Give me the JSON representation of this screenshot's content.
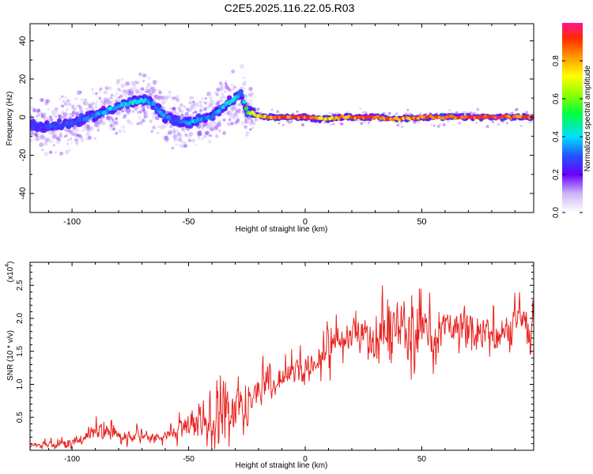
{
  "title": "C2E5.2025.116.22.05.R03",
  "chart_data": [
    {
      "type": "heatmap",
      "xlabel": "Height of straight line (km)",
      "ylabel": "Frequency (Hz)",
      "xlim": [
        -118,
        98
      ],
      "ylim": [
        -50,
        49
      ],
      "x_ticks": [
        -100,
        -50,
        0,
        50
      ],
      "x_tick_labels": [
        "-100",
        "-50",
        "0",
        "50"
      ],
      "y_ticks": [
        -40,
        -20,
        0,
        20,
        40
      ],
      "y_tick_labels": [
        "-40",
        "-20",
        "0",
        "20",
        "40"
      ],
      "grid": false,
      "colorbar": {
        "label": "Normalized spectral amplitude",
        "range": [
          0,
          1
        ],
        "ticks": [
          0.0,
          0.2,
          0.4,
          0.6,
          0.8
        ],
        "tick_labels": [
          "0.0",
          "0.2",
          "0.4",
          "0.6",
          "0.8"
        ]
      },
      "ridge": {
        "x": [
          -118,
          -110,
          -100,
          -90,
          -80,
          -70,
          -65,
          -60,
          -55,
          -50,
          -45,
          -40,
          -35,
          -30,
          -27,
          -25,
          -23,
          -20,
          -15,
          -10,
          -5,
          0,
          5,
          10,
          15,
          20,
          30,
          40,
          50,
          60,
          70,
          80,
          90,
          98
        ],
        "frequency": [
          -4,
          -5,
          -3,
          1,
          6,
          9,
          7,
          0,
          -2,
          -3,
          -1,
          0,
          6,
          10,
          12,
          3,
          2,
          1,
          0,
          0,
          0,
          0,
          -1,
          -1,
          0,
          0,
          0,
          -1,
          0,
          0,
          0,
          0,
          0,
          0
        ],
        "amplitude": [
          0.25,
          0.3,
          0.3,
          0.35,
          0.4,
          0.45,
          0.35,
          0.35,
          0.3,
          0.4,
          0.35,
          0.35,
          0.4,
          0.45,
          0.35,
          0.6,
          0.65,
          0.8,
          0.85,
          0.9,
          0.9,
          0.95,
          0.85,
          0.8,
          0.85,
          0.9,
          0.9,
          0.85,
          0.9,
          0.95,
          0.95,
          0.95,
          0.95,
          0.9
        ]
      }
    },
    {
      "type": "line",
      "xlabel": "Height of straight line (km)",
      "ylabel": "SNR (10 * v/v)",
      "scale_label": "(x10",
      "scale_exponent": "4",
      "scale_suffix": ")",
      "xlim": [
        -118,
        98
      ],
      "ylim": [
        0,
        2.85
      ],
      "x_ticks": [
        -100,
        -50,
        0,
        50
      ],
      "x_tick_labels": [
        "-100",
        "-50",
        "0",
        "50"
      ],
      "y_ticks": [
        0.5,
        1.0,
        1.5,
        2.0,
        2.5
      ],
      "y_tick_labels": [
        "0.5",
        "1.0",
        "1.5",
        "2.0",
        "2.5"
      ],
      "grid": false,
      "color": "#e8231f",
      "series": [
        {
          "x": [
            -118,
            -110,
            -100,
            -90,
            -85,
            -80,
            -70,
            -60,
            -55,
            -50,
            -45,
            -40,
            -35,
            -30,
            -25,
            -20,
            -15,
            -10,
            -5,
            0,
            5,
            10,
            15,
            20,
            25,
            30,
            35,
            40,
            45,
            50,
            55,
            60,
            65,
            70,
            75,
            80,
            85,
            90,
            98
          ],
          "values": [
            0.05,
            0.1,
            0.12,
            0.28,
            0.35,
            0.2,
            0.22,
            0.2,
            0.28,
            0.35,
            0.45,
            0.5,
            0.6,
            0.7,
            0.55,
            0.9,
            1.1,
            1.05,
            1.2,
            1.25,
            1.3,
            1.5,
            1.65,
            1.8,
            1.75,
            1.7,
            1.8,
            1.85,
            1.9,
            1.8,
            1.75,
            1.85,
            1.85,
            1.9,
            1.8,
            1.85,
            1.8,
            1.9,
            1.85
          ],
          "noise": [
            0.05,
            0.1,
            0.1,
            0.22,
            0.25,
            0.15,
            0.15,
            0.12,
            0.2,
            0.3,
            0.45,
            0.6,
            0.65,
            0.55,
            0.4,
            0.3,
            0.3,
            0.3,
            0.3,
            0.25,
            0.35,
            0.45,
            0.35,
            0.35,
            0.35,
            0.45,
            0.55,
            0.65,
            0.7,
            0.55,
            0.5,
            0.45,
            0.45,
            0.55,
            0.55,
            0.45,
            0.4,
            0.4,
            0.35
          ]
        }
      ]
    }
  ]
}
